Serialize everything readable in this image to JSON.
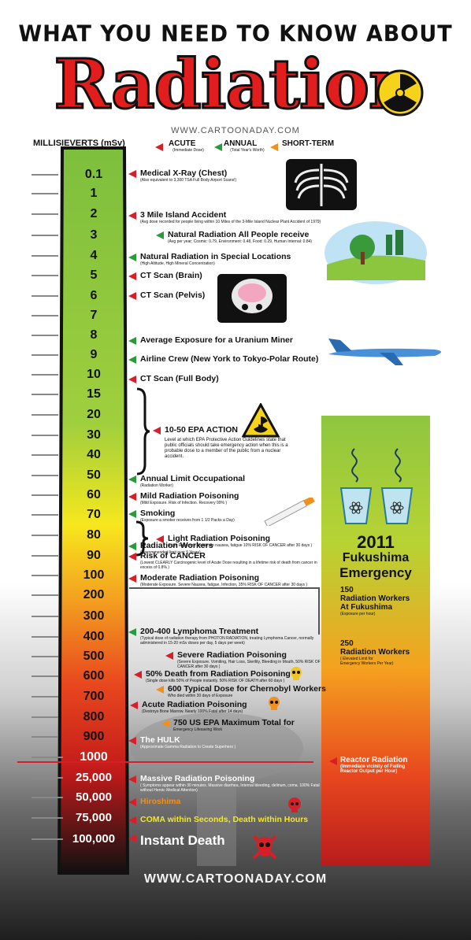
{
  "header": {
    "line1": "WHAT YOU NEED TO KNOW ABOUT",
    "line2": "Radiation",
    "site": "WWW.CARTOONADAY.COM"
  },
  "units_label": "MILLISIEVERTS (mSv)",
  "legend": [
    {
      "label": "ACUTE",
      "sub": "(Immediate Dose)",
      "color": "#d61f26"
    },
    {
      "label": "ANNUAL",
      "sub": "(Total Year's Worth)",
      "color": "#2a9a3b"
    },
    {
      "label": "SHORT-TERM",
      "sub": "",
      "color": "#f0901e"
    }
  ],
  "scale": [
    "0.1",
    "1",
    "2",
    "3",
    "4",
    "5",
    "6",
    "7",
    "8",
    "9",
    "10",
    "15",
    "20",
    "30",
    "40",
    "50",
    "60",
    "70",
    "80",
    "90",
    "100",
    "200",
    "300",
    "400",
    "500",
    "600",
    "700",
    "800",
    "900",
    "1000",
    "25,000",
    "50,000",
    "75,000",
    "100,000"
  ],
  "events": [
    {
      "title": "Medical X-Ray (Chest)",
      "sub": "(Also equivalent to 3,300 TSA Full Body Airport Scans!)",
      "kind": "acute"
    },
    {
      "title": "3 Mile Island Accident",
      "sub": "(Avg dose recorded for people living within 10 Miles of the 3-Mile Island Nuclear Plant Accident of 1979)",
      "kind": "acute"
    },
    {
      "title": "Natural Radiation All People receive",
      "sub": "(Avg per year; Cosmic: 0.79, Environment: 0.48, Food: 0.29, Human Internal: 0.84)",
      "kind": "annual"
    },
    {
      "title": "Natural Radiation in Special Locations",
      "sub": "(High Altitude, High Mineral Concentration)",
      "kind": "annual"
    },
    {
      "title": "CT Scan (Brain)",
      "sub": "",
      "kind": "acute"
    },
    {
      "title": "CT Scan (Pelvis)",
      "sub": "",
      "kind": "acute"
    },
    {
      "title": "Average Exposure for a Uranium Miner",
      "sub": "",
      "kind": "annual"
    },
    {
      "title": "Airline Crew (New York to Tokyo-Polar Route)",
      "sub": "",
      "kind": "annual"
    },
    {
      "title": "CT Scan (Full Body)",
      "sub": "",
      "kind": "acute"
    },
    {
      "title": "10-50 EPA ACTION",
      "sub": "Level at which EPA Protective Action Guidelines state that public officials should take emergency action when this is a probable dose to a member of the public from a nuclear accident.",
      "kind": "acute"
    },
    {
      "title": "Annual Limit Occupational",
      "sub": "(Radiation Worker)",
      "kind": "annual"
    },
    {
      "title": "Mild Radiation Poisoning",
      "sub": "(Mild Exposure. Risk of Infection. Recovery 99% )",
      "kind": "acute"
    },
    {
      "title": "Smoking",
      "sub": "(Exposure a smoker receives from 1 1/2 Packs a Day)",
      "kind": "annual"
    },
    {
      "title": "Light Radiation Poisoning",
      "sub": "(Light Exposure. Moderate nausea, fatigue 10% RISK OF CANCER after 30 days )",
      "kind": "acute"
    },
    {
      "title": "Radiation Workers",
      "sub": "(Recommended limit over 5 Years)",
      "kind": "annual"
    },
    {
      "title": "Risk of CANCER",
      "sub": "(Lowest CLEARLY Carcinogenic level of Acute Dose resulting in a lifetime risk of death from cancer in excess of 0.8% )",
      "kind": "acute"
    },
    {
      "title": "Moderate Radiation Poisoning",
      "sub": "(Moderate Exposure. Severe Nausea, fatigue, Infection, 35% RISK OF CANCER after 30 days )",
      "kind": "acute"
    },
    {
      "title": "200-400 Lymphoma Treatment",
      "sub": "(Typical dose of radiation therapy from PHOTON RADIATION, treating Lymphoma Cancer, normally administered in 15-20 mSv doses per day, 5 days per week)",
      "kind": "annual"
    },
    {
      "title": "Severe Radiation Poisoning",
      "sub": "(Severe Exposure. Vomiting, Hair Loss, Sterility, Bleeding in Mouth, 50% RISK OF CANCER after 30 days )",
      "kind": "acute"
    },
    {
      "title": "50% Death from Radiation Poisoning",
      "sub": "(Single dose kills 50% of People instantly. 50% RISK OF DEATH after 60 days )",
      "kind": "acute"
    },
    {
      "title": "600 Typical Dose for Chernobyl Workers",
      "sub": "Who died within 30 days of Exposure",
      "kind": "short"
    },
    {
      "title": "Acute Radiation Poisoning",
      "sub": "(Destroys Bone Marrow. Nearly 100% Fatal after 14 days)",
      "kind": "acute"
    },
    {
      "title": "750 US EPA Maximum Total for",
      "sub": "Emergency Lifesaving Work",
      "kind": "short"
    },
    {
      "title": "The HULK",
      "sub": "(Approximate Gamma Radiation to Create Superhero )",
      "kind": "acute"
    },
    {
      "title": "Massive Radiation Poisoning",
      "sub": "( Symptoms appear within 30 minutes. Massive diarrhea, Internal bleeding, delirium, coma. 100% Fatal without Heroic Medical Attention)",
      "kind": "acute"
    },
    {
      "title": "Hiroshima",
      "sub": "",
      "kind": "acute"
    },
    {
      "title": "COMA within Seconds, Death within Hours",
      "sub": "",
      "kind": "acute"
    },
    {
      "title": "Instant Death",
      "sub": "",
      "kind": "acute"
    }
  ],
  "fukushima": {
    "year": "2011",
    "name": "Fukushima",
    "word": "Emergency",
    "w150": {
      "num": "150",
      "l1": "Radiation Workers",
      "l2": "At Fukushima",
      "sub": "(Exposure per hour)"
    },
    "w250": {
      "num": "250",
      "l1": "Radiation Workers",
      "sub1": "( Elevated Limit for",
      "sub2": "Emergency Workers Per Year)"
    },
    "reactor": {
      "title": "Reactor Radiation",
      "sub1": "(Immediate vicinity of Failing",
      "sub2": "Reactor Output per Hour)"
    }
  },
  "footer": {
    "site": "WWW.CARTOONADAY.COM"
  },
  "colors": {
    "acute": "#d61f26",
    "annual": "#2a9a3b",
    "short": "#f0901e",
    "title_red": "#e21d1d"
  }
}
